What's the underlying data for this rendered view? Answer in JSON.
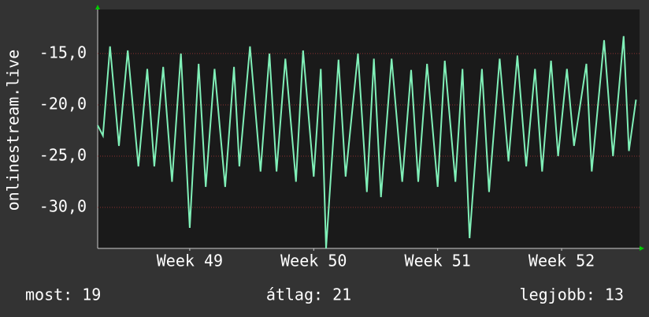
{
  "chart_data": {
    "type": "line",
    "y_label": "onlinestream.live",
    "x": [
      0,
      0.3,
      0.7,
      1.2,
      1.7,
      2.3,
      2.8,
      3.2,
      3.7,
      4.2,
      4.7,
      5.2,
      5.7,
      6.1,
      6.6,
      7.2,
      7.7,
      8.0,
      8.6,
      9.2,
      9.7,
      10.1,
      10.6,
      11.2,
      11.6,
      12.2,
      12.6,
      12.9,
      13.6,
      14.0,
      14.7,
      15.2,
      15.6,
      16.0,
      16.6,
      17.2,
      17.7,
      18.1,
      18.6,
      19.2,
      19.6,
      20.2,
      20.6,
      21.0,
      21.7,
      22.1,
      22.7,
      23.2,
      23.7,
      24.2,
      24.7,
      25.1,
      25.6,
      26.0,
      26.5,
      26.9,
      27.6,
      27.9,
      28.6,
      29.1,
      29.7,
      30.0,
      30.4
    ],
    "series": [
      {
        "color": "#80f0b8",
        "values": [
          -22,
          -23,
          -14.3,
          -24,
          -14.7,
          -26,
          -16.5,
          -26,
          -16.3,
          -27.5,
          -15,
          -32,
          -16,
          -28,
          -16.5,
          -28,
          -16.3,
          -26,
          -14.3,
          -26.5,
          -15,
          -26.5,
          -15.5,
          -27.5,
          -14.7,
          -27,
          -16.5,
          -34,
          -15.6,
          -27,
          -15,
          -28.5,
          -15.5,
          -29,
          -15.5,
          -27.5,
          -16.6,
          -27.5,
          -16,
          -28,
          -15.7,
          -27.5,
          -16.5,
          -33,
          -16.5,
          -28.5,
          -15.5,
          -25.5,
          -15.2,
          -26,
          -16.5,
          -26.5,
          -15.7,
          -25,
          -16.5,
          -24,
          -16,
          -26.5,
          -13.7,
          -25,
          -13.3,
          -24.5,
          -19.5
        ]
      }
    ],
    "xlim": [
      0,
      30.6
    ],
    "xticks": [
      {
        "value": 5.2,
        "label": "Week 49"
      },
      {
        "value": 12.2,
        "label": "Week 50"
      },
      {
        "value": 19.2,
        "label": "Week 51"
      },
      {
        "value": 26.2,
        "label": "Week 52"
      }
    ],
    "ylim": [
      -34,
      -10.7
    ],
    "yticks": [
      {
        "value": -30,
        "label": "-30,0"
      },
      {
        "value": -25,
        "label": "-25,0"
      },
      {
        "value": -20,
        "label": "-20,0"
      },
      {
        "value": -15,
        "label": "-15,0"
      }
    ],
    "grid": true,
    "footer": [
      "most: 19",
      "átlag: 21",
      "legjobb: 13"
    ]
  }
}
